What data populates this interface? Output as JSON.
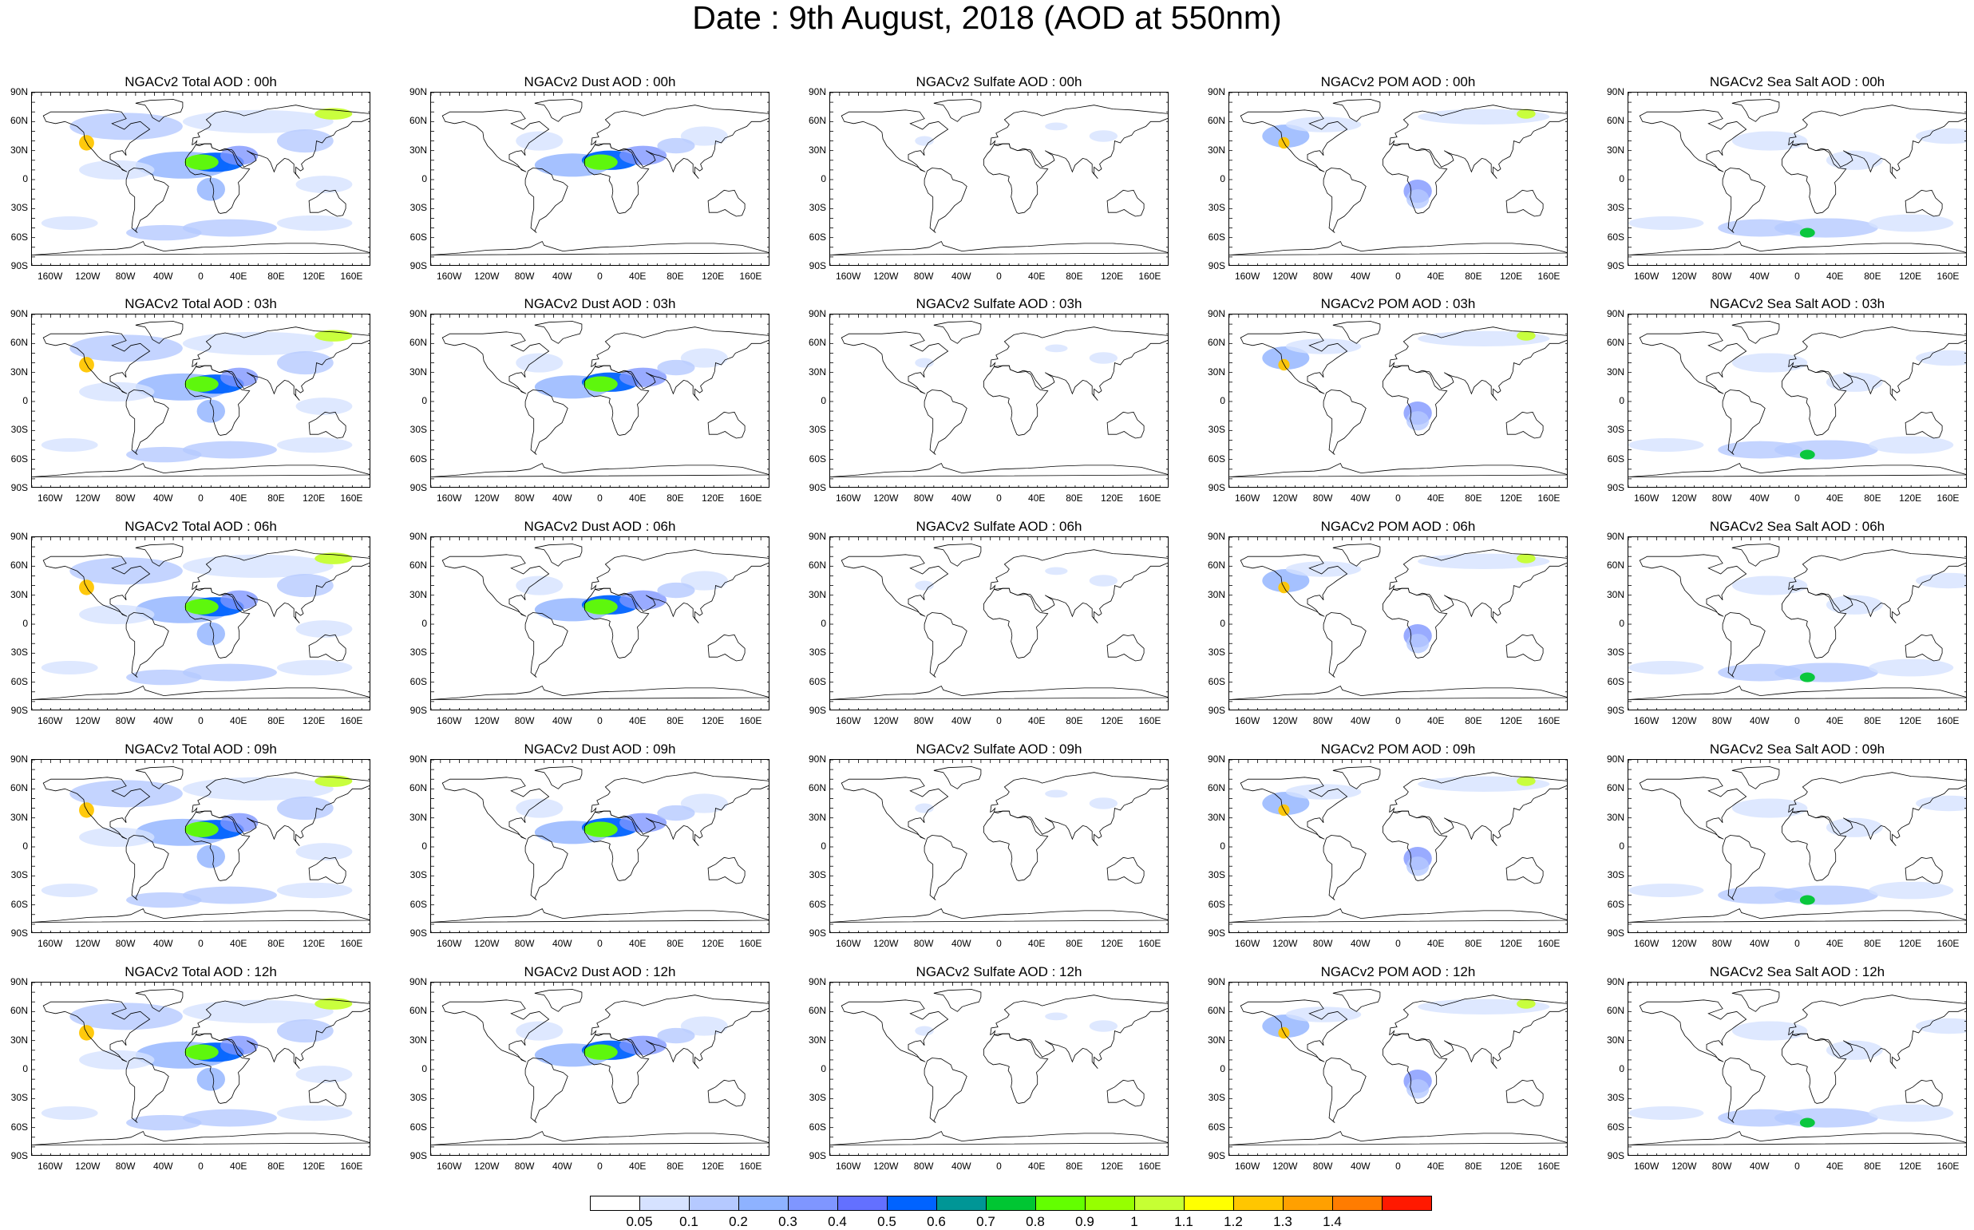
{
  "title": "Date : 9th August, 2018 (AOD at 550nm)",
  "lat_ticks": [
    "90N",
    "60N",
    "30N",
    "0",
    "30S",
    "60S",
    "90S"
  ],
  "lon_ticks": [
    "160W",
    "120W",
    "80W",
    "40W",
    "0",
    "40E",
    "80E",
    "120E",
    "160E"
  ],
  "columns": [
    {
      "key": "total",
      "name": "Total AOD"
    },
    {
      "key": "dust",
      "name": "Dust AOD"
    },
    {
      "key": "sulfate",
      "name": "Sulfate AOD"
    },
    {
      "key": "pom",
      "name": "POM AOD"
    },
    {
      "key": "seasalt",
      "name": "Sea Salt AOD"
    }
  ],
  "panels": [
    [
      "NGACv2 Total AOD : 00h",
      "NGACv2 Dust AOD : 00h",
      "NGACv2 Sulfate AOD : 00h",
      "NGACv2 POM AOD : 00h",
      "NGACv2 Sea Salt AOD : 00h"
    ],
    [
      "NGACv2 Total AOD : 03h",
      "NGACv2 Dust AOD : 03h",
      "NGACv2 Sulfate AOD : 03h",
      "NGACv2 POM AOD : 03h",
      "NGACv2 Sea Salt AOD : 03h"
    ],
    [
      "NGACv2 Total AOD : 06h",
      "NGACv2 Dust AOD : 06h",
      "NGACv2 Sulfate AOD : 06h",
      "NGACv2 POM AOD : 06h",
      "NGACv2 Sea Salt AOD : 06h"
    ],
    [
      "NGACv2 Total AOD : 09h",
      "NGACv2 Dust AOD : 09h",
      "NGACv2 Sulfate AOD : 09h",
      "NGACv2 POM AOD : 09h",
      "NGACv2 Sea Salt  AOD : 09h"
    ],
    [
      "NGACv2 Total AOD : 12h",
      "NGACv2 Dust AOD : 12h",
      "NGACv2 Sulfate AOD : 12h",
      "NGACv2 POM  AOD : 12h",
      "NGACv2 Sea Salt  AOD : 12h"
    ]
  ],
  "colorbar": {
    "colors": [
      "#ffffff",
      "#d6e2ff",
      "#b5c9ff",
      "#8eb2ff",
      "#7f96ff",
      "#6370ff",
      "#0063ff",
      "#009696",
      "#00c633",
      "#63ff00",
      "#96ff00",
      "#c6ff33",
      "#ffff00",
      "#ffc600",
      "#ffa000",
      "#ff7c00",
      "#ff1900"
    ],
    "labels": [
      "0.05",
      "0.1",
      "0.2",
      "0.3",
      "0.4",
      "0.5",
      "0.6",
      "0.7",
      "0.8",
      "0.9",
      "1",
      "1.1",
      "1.2",
      "1.3",
      "1.4"
    ]
  }
}
